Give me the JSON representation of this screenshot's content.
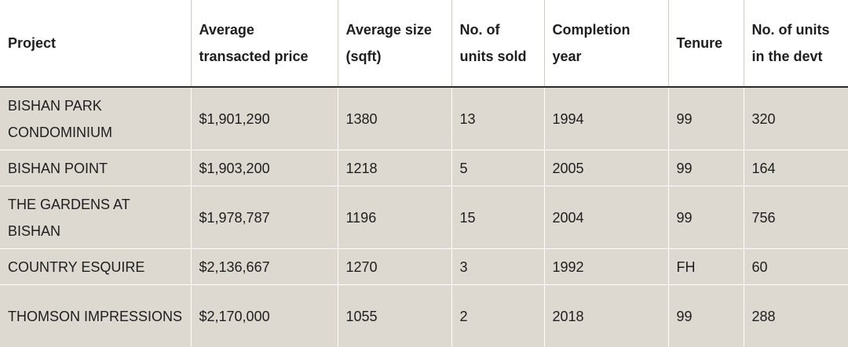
{
  "table": {
    "headers": [
      "Project",
      "Average transacted price",
      "Average size (sqft)",
      "No. of units sold",
      "Completion year",
      "Tenure",
      "No. of units in the devt"
    ],
    "rows": [
      [
        "BISHAN PARK CONDOMINIUM",
        "$1,901,290",
        "1380",
        "13",
        "1994",
        "99",
        "320"
      ],
      [
        "BISHAN POINT",
        "$1,903,200",
        "1218",
        "5",
        "2005",
        "99",
        "164"
      ],
      [
        "THE GARDENS AT BISHAN",
        "$1,978,787",
        "1196",
        "15",
        "2004",
        "99",
        "756"
      ],
      [
        "COUNTRY ESQUIRE",
        "$2,136,667",
        "1270",
        "3",
        "1992",
        "FH",
        "60"
      ],
      [
        "THOMSON IMPRESSIONS",
        "$2,170,000",
        "1055",
        "2",
        "2018",
        "99",
        "288"
      ]
    ]
  }
}
